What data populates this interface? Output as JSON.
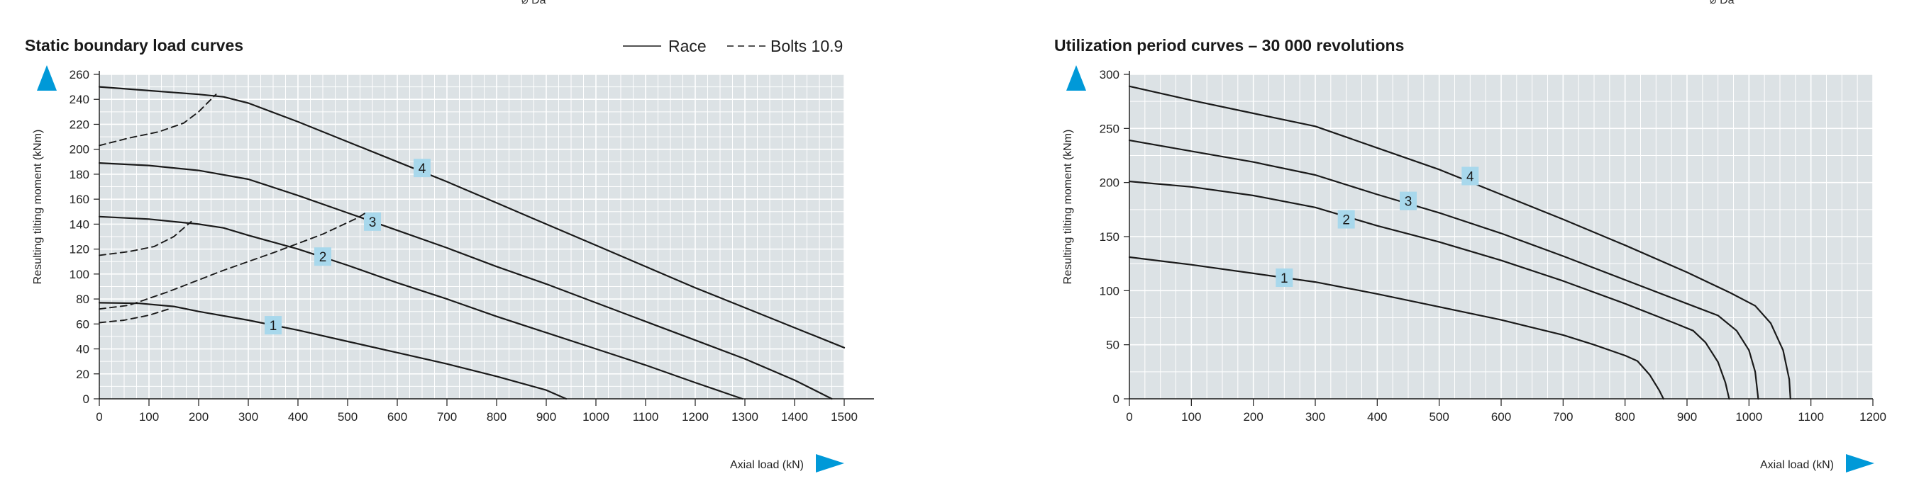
{
  "colors": {
    "plot_bg": "#dce2e5",
    "grid": "#ffffff",
    "curve": "#1a1a1a",
    "label_box": "#a8d8ec",
    "arrow": "#0099d8"
  },
  "top_fragments": [
    "⌀ Da",
    "⌀ Da"
  ],
  "chart_data": [
    {
      "type": "line",
      "title": "Static boundary load curves",
      "xlabel": "Axial load (kN)",
      "ylabel": "Resulting tilting moment (kNm)",
      "xlim": [
        0,
        1500
      ],
      "ylim": [
        0,
        260
      ],
      "x_ticks": [
        0,
        100,
        200,
        300,
        400,
        500,
        600,
        700,
        800,
        900,
        1000,
        1100,
        1200,
        1300,
        1400,
        1500
      ],
      "y_ticks": [
        0,
        20,
        40,
        60,
        80,
        100,
        120,
        140,
        160,
        180,
        200,
        220,
        240,
        260
      ],
      "grid": true,
      "legend": {
        "position": "top-right",
        "entries": [
          {
            "label": "Race",
            "style": "solid"
          },
          {
            "label": "Bolts 10.9",
            "style": "dashed"
          }
        ]
      },
      "series": [
        {
          "label": "1",
          "style": "solid",
          "label_at": [
            350,
            59
          ],
          "points": [
            [
              0,
              77
            ],
            [
              80,
              76.5
            ],
            [
              150,
              74
            ],
            [
              200,
              70
            ],
            [
              300,
              63
            ],
            [
              400,
              55
            ],
            [
              500,
              46
            ],
            [
              600,
              37
            ],
            [
              700,
              28
            ],
            [
              800,
              18
            ],
            [
              900,
              7
            ],
            [
              940,
              0
            ]
          ]
        },
        {
          "label": "2",
          "style": "solid",
          "label_at": [
            450,
            114
          ],
          "points": [
            [
              0,
              146
            ],
            [
              100,
              144
            ],
            [
              200,
              140
            ],
            [
              250,
              137
            ],
            [
              300,
              131
            ],
            [
              400,
              120
            ],
            [
              500,
              107
            ],
            [
              600,
              93
            ],
            [
              700,
              80
            ],
            [
              800,
              66
            ],
            [
              900,
              53
            ],
            [
              1000,
              40
            ],
            [
              1100,
              27
            ],
            [
              1200,
              13
            ],
            [
              1295,
              0
            ]
          ]
        },
        {
          "label": "3",
          "style": "solid",
          "label_at": [
            550,
            142
          ],
          "points": [
            [
              0,
              189
            ],
            [
              100,
              187
            ],
            [
              200,
              183
            ],
            [
              300,
              176
            ],
            [
              400,
              163
            ],
            [
              500,
              149
            ],
            [
              600,
              135
            ],
            [
              700,
              121
            ],
            [
              800,
              106
            ],
            [
              900,
              92
            ],
            [
              1000,
              77
            ],
            [
              1100,
              62
            ],
            [
              1200,
              47
            ],
            [
              1300,
              32
            ],
            [
              1400,
              15
            ],
            [
              1475,
              0
            ]
          ]
        },
        {
          "label": "4",
          "style": "solid",
          "label_at": [
            650,
            185
          ],
          "points": [
            [
              0,
              250
            ],
            [
              100,
              247
            ],
            [
              200,
              244
            ],
            [
              250,
              242
            ],
            [
              300,
              237
            ],
            [
              400,
              222
            ],
            [
              500,
              206
            ],
            [
              600,
              190
            ],
            [
              700,
              174
            ],
            [
              800,
              157
            ],
            [
              900,
              140
            ],
            [
              1000,
              123
            ],
            [
              1100,
              106
            ],
            [
              1200,
              89
            ],
            [
              1300,
              73
            ],
            [
              1400,
              57
            ],
            [
              1500,
              41
            ]
          ]
        },
        {
          "label": "",
          "style": "dashed",
          "points": [
            [
              0,
              61
            ],
            [
              50,
              63
            ],
            [
              100,
              67
            ],
            [
              140,
              72
            ]
          ]
        },
        {
          "label": "",
          "style": "dashed",
          "points": [
            [
              0,
              72
            ],
            [
              60,
              75
            ],
            [
              140,
              86
            ],
            [
              250,
              103
            ],
            [
              350,
              117
            ],
            [
              450,
              132
            ],
            [
              520,
              145
            ],
            [
              540,
              150
            ]
          ]
        },
        {
          "label": "",
          "style": "dashed",
          "points": [
            [
              0,
              115
            ],
            [
              60,
              118
            ],
            [
              110,
              122
            ],
            [
              150,
              130
            ],
            [
              185,
              142
            ]
          ]
        },
        {
          "label": "",
          "style": "dashed",
          "points": [
            [
              0,
              203
            ],
            [
              60,
              209
            ],
            [
              120,
              214
            ],
            [
              170,
              221
            ],
            [
              200,
              230
            ],
            [
              225,
              240
            ],
            [
              235,
              244
            ]
          ]
        }
      ]
    },
    {
      "type": "line",
      "title": "Utilization period curves – 30 000 revolutions",
      "xlabel": "Axial load (kN)",
      "ylabel": "Resulting tilting moment (kNm)",
      "xlim": [
        0,
        1200
      ],
      "ylim": [
        0,
        300
      ],
      "x_ticks": [
        0,
        100,
        200,
        300,
        400,
        500,
        600,
        700,
        800,
        900,
        1000,
        1100,
        1200
      ],
      "y_ticks": [
        0,
        50,
        100,
        150,
        200,
        250,
        300
      ],
      "grid": true,
      "series": [
        {
          "label": "1",
          "style": "solid",
          "label_at": [
            250,
            112
          ],
          "points": [
            [
              0,
              131
            ],
            [
              100,
              124
            ],
            [
              200,
              116
            ],
            [
              300,
              108
            ],
            [
              400,
              97
            ],
            [
              500,
              85
            ],
            [
              600,
              73
            ],
            [
              700,
              59
            ],
            [
              750,
              50
            ],
            [
              800,
              40
            ],
            [
              820,
              35
            ],
            [
              840,
              22
            ],
            [
              855,
              8
            ],
            [
              862,
              0
            ]
          ]
        },
        {
          "label": "2",
          "style": "solid",
          "label_at": [
            350,
            166
          ],
          "points": [
            [
              0,
              201
            ],
            [
              100,
              196
            ],
            [
              200,
              188
            ],
            [
              300,
              177
            ],
            [
              400,
              160
            ],
            [
              500,
              145
            ],
            [
              600,
              128
            ],
            [
              700,
              109
            ],
            [
              800,
              88
            ],
            [
              880,
              70
            ],
            [
              910,
              63
            ],
            [
              930,
              52
            ],
            [
              950,
              34
            ],
            [
              962,
              15
            ],
            [
              968,
              0
            ]
          ]
        },
        {
          "label": "3",
          "style": "solid",
          "label_at": [
            450,
            183
          ],
          "points": [
            [
              0,
              239
            ],
            [
              100,
              229
            ],
            [
              200,
              219
            ],
            [
              300,
              207
            ],
            [
              400,
              189
            ],
            [
              500,
              172
            ],
            [
              600,
              153
            ],
            [
              700,
              132
            ],
            [
              800,
              110
            ],
            [
              900,
              88
            ],
            [
              950,
              77
            ],
            [
              980,
              63
            ],
            [
              1000,
              45
            ],
            [
              1010,
              25
            ],
            [
              1015,
              0
            ]
          ]
        },
        {
          "label": "4",
          "style": "solid",
          "label_at": [
            550,
            206
          ],
          "points": [
            [
              0,
              289
            ],
            [
              100,
              276
            ],
            [
              200,
              264
            ],
            [
              300,
              252
            ],
            [
              400,
              232
            ],
            [
              500,
              212
            ],
            [
              600,
              189
            ],
            [
              700,
              166
            ],
            [
              800,
              142
            ],
            [
              900,
              117
            ],
            [
              970,
              98
            ],
            [
              1010,
              86
            ],
            [
              1035,
              70
            ],
            [
              1055,
              45
            ],
            [
              1065,
              18
            ],
            [
              1067,
              0
            ]
          ]
        }
      ]
    }
  ]
}
